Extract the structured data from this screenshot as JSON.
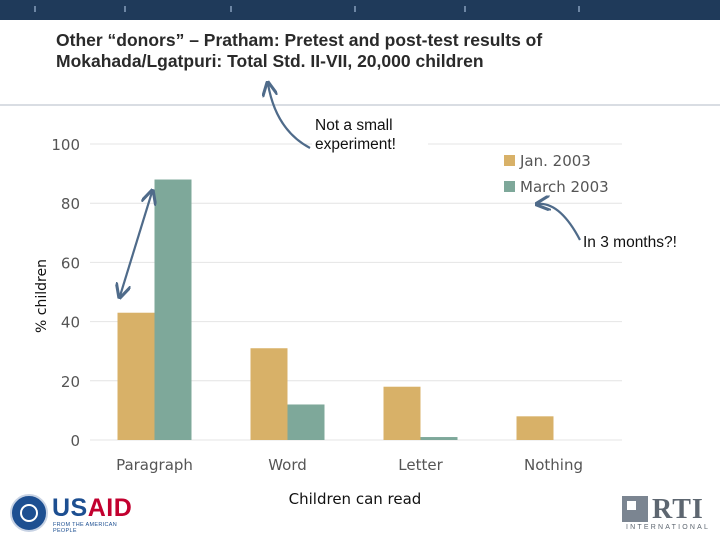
{
  "slide": {
    "title": "Other “donors” – Pratham: Pretest and post-test results of Mokahada/Lgatpuri: Total Std. II-VII, 20,000 children",
    "callout_top": "Not a small experiment!",
    "callout_right": "In 3 months?!"
  },
  "logos": {
    "usaid_left": "US",
    "usaid_right": "AID",
    "usaid_tagline": "FROM THE AMERICAN PEOPLE",
    "rti_name": "RTI",
    "rti_tagline": "INTERNATIONAL"
  },
  "colors": {
    "topbar": "#1f3a5a",
    "jan": "#d8b168",
    "march": "#7ea89a",
    "arrow": "#4f6b8a"
  },
  "icons": [
    "usaid-seal-icon",
    "rti-mark-icon",
    "arrow-icon"
  ],
  "chart_data": {
    "type": "bar",
    "categories": [
      "Paragraph",
      "Word",
      "Letter",
      "Nothing"
    ],
    "series": [
      {
        "name": "Jan. 2003",
        "values": [
          43,
          31,
          18,
          8
        ]
      },
      {
        "name": "March 2003",
        "values": [
          88,
          12,
          1,
          0
        ]
      }
    ],
    "yticks": [
      "0",
      "20",
      "40",
      "60",
      "80",
      "100"
    ],
    "ylim": [
      0,
      100
    ],
    "xlabel": "Children can read",
    "ylabel": "% children",
    "grid": true,
    "legend": "top-right"
  }
}
